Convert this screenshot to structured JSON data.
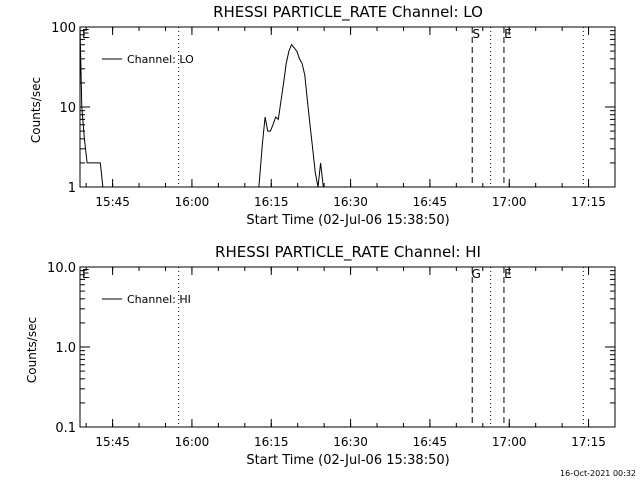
{
  "figure": {
    "footer_timestamp": "16-Oct-2021 00:32",
    "colors": {
      "background": "#ffffff",
      "ink": "#000000"
    }
  },
  "chart_data": [
    {
      "type": "line",
      "title": "RHESSI PARTICLE_RATE Channel: LO",
      "xlabel": "Start Time (02-Jul-06 15:38:50)",
      "ylabel": "Counts/sec",
      "xscale": "time-minutes",
      "xlim": [
        "15:38:50",
        "17:20:00"
      ],
      "xticks": [
        "15:45",
        "16:00",
        "16:15",
        "16:30",
        "16:45",
        "17:00",
        "17:15"
      ],
      "yscale": "log",
      "ylim": [
        1,
        100
      ],
      "yticks": [
        "1",
        "10",
        "100"
      ],
      "grid": false,
      "legend_position": "top-left",
      "series": [
        {
          "name": "Channel: LO",
          "x": [
            "15:38:50",
            "15:39:10",
            "15:39:40",
            "15:40:10",
            "15:40:40",
            "15:41:20",
            "15:42:00",
            "15:42:40",
            "15:43:10",
            "16:12:40",
            "16:13:20",
            "16:13:50",
            "16:14:20",
            "16:14:50",
            "16:15:20",
            "16:15:50",
            "16:16:20",
            "16:16:50",
            "16:17:20",
            "16:17:50",
            "16:18:20",
            "16:18:50",
            "16:19:20",
            "16:19:50",
            "16:20:20",
            "16:20:50",
            "16:21:20",
            "16:21:50",
            "16:22:20",
            "16:22:50",
            "16:23:20",
            "16:23:50",
            "16:24:20",
            "16:24:50",
            "16:25:20"
          ],
          "y": [
            100,
            10,
            4,
            2,
            2,
            2,
            2,
            2,
            1,
            1,
            3.5,
            7.5,
            5,
            5,
            6,
            7.5,
            7,
            12,
            20,
            35,
            50,
            60,
            55,
            50,
            40,
            35,
            25,
            12,
            6,
            3,
            1.5,
            1,
            2,
            1,
            1
          ]
        }
      ],
      "event_markers": [
        {
          "time": "15:57:30",
          "style": "dotted",
          "label": ""
        },
        {
          "time": "16:53:00",
          "style": "dashed",
          "label": "S"
        },
        {
          "time": "16:56:30",
          "style": "dotted",
          "label": ""
        },
        {
          "time": "16:59:00",
          "style": "dashed",
          "label": "E"
        },
        {
          "time": "17:14:00",
          "style": "dotted",
          "label": ""
        }
      ],
      "corner_label": "E"
    },
    {
      "type": "line",
      "title": "RHESSI PARTICLE_RATE Channel: HI",
      "xlabel": "Start Time (02-Jul-06 15:38:50)",
      "ylabel": "Counts/sec",
      "xscale": "time-minutes",
      "xlim": [
        "15:38:50",
        "17:20:00"
      ],
      "xticks": [
        "15:45",
        "16:00",
        "16:15",
        "16:30",
        "16:45",
        "17:00",
        "17:15"
      ],
      "yscale": "log",
      "ylim": [
        0.1,
        10
      ],
      "yticks": [
        "0.1",
        "1.0",
        "10.0"
      ],
      "grid": false,
      "legend_position": "top-left",
      "series": [
        {
          "name": "Channel: HI",
          "x": [],
          "y": []
        }
      ],
      "event_markers": [
        {
          "time": "15:57:30",
          "style": "dotted",
          "label": ""
        },
        {
          "time": "16:53:00",
          "style": "dashed",
          "label": "G"
        },
        {
          "time": "16:56:30",
          "style": "dotted",
          "label": ""
        },
        {
          "time": "16:59:00",
          "style": "dashed",
          "label": "E"
        },
        {
          "time": "17:14:00",
          "style": "dotted",
          "label": ""
        }
      ],
      "corner_label": "E"
    }
  ]
}
